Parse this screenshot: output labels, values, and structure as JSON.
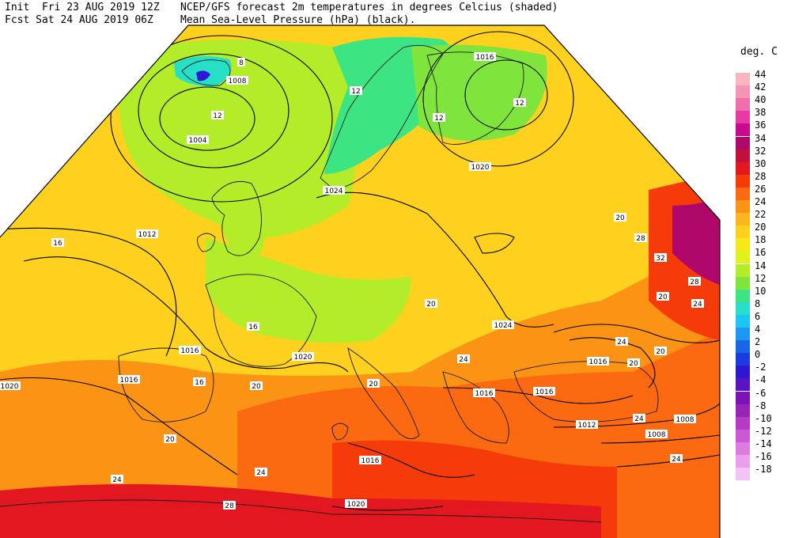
{
  "header": {
    "init_line": "Init  Fri 23 AUG 2019 12Z",
    "fcst_line": "Fcst Sat 24 AUG 2019 06Z",
    "title_line1": "NCEP/GFS forecast 2m temperatures in degrees Celcius (shaded)",
    "title_line2": "Mean Sea-Level Pressure (hPa) (black)."
  },
  "legend": {
    "title": "deg. C",
    "entries": [
      {
        "label": "44",
        "color": "#f7b7bd"
      },
      {
        "label": "42",
        "color": "#f595b5"
      },
      {
        "label": "40",
        "color": "#f06dae"
      },
      {
        "label": "38",
        "color": "#e83aa0"
      },
      {
        "label": "36",
        "color": "#c90a8c"
      },
      {
        "label": "34",
        "color": "#b0086a"
      },
      {
        "label": "32",
        "color": "#c2103e"
      },
      {
        "label": "30",
        "color": "#e3171f"
      },
      {
        "label": "28",
        "color": "#f63b0b"
      },
      {
        "label": "26",
        "color": "#fb6a10"
      },
      {
        "label": "24",
        "color": "#fb9414"
      },
      {
        "label": "22",
        "color": "#fdb61c"
      },
      {
        "label": "20",
        "color": "#fdd11d"
      },
      {
        "label": "18",
        "color": "#f6ea16"
      },
      {
        "label": "16",
        "color": "#dff21a"
      },
      {
        "label": "14",
        "color": "#b3ec28"
      },
      {
        "label": "12",
        "color": "#7fe53c"
      },
      {
        "label": "10",
        "color": "#3de482"
      },
      {
        "label": "8",
        "color": "#25e0c6"
      },
      {
        "label": "6",
        "color": "#1cc6f2"
      },
      {
        "label": "4",
        "color": "#1a98f2"
      },
      {
        "label": "2",
        "color": "#1b66e6"
      },
      {
        "label": "0",
        "color": "#1a3be0"
      },
      {
        "label": "-2",
        "color": "#2d17d4"
      },
      {
        "label": "-4",
        "color": "#5a13c4"
      },
      {
        "label": "-6",
        "color": "#7a14b6"
      },
      {
        "label": "-8",
        "color": "#9b22b7"
      },
      {
        "label": "-10",
        "color": "#b63ac4"
      },
      {
        "label": "-12",
        "color": "#c95ad2"
      },
      {
        "label": "-14",
        "color": "#dd7ce0"
      },
      {
        "label": "-16",
        "color": "#ea9eec"
      },
      {
        "label": "-18",
        "color": "#f6c2f6"
      }
    ]
  },
  "isobar_labels": [
    "1008",
    "1004",
    "1016",
    "1020",
    "1024",
    "1012",
    "1016",
    "1020",
    "1016",
    "1020",
    "1016",
    "1024",
    "1016",
    "1016",
    "1012",
    "1008",
    "1008",
    "1016",
    "1020"
  ],
  "temp_labels": [
    "8",
    "12",
    "12",
    "12",
    "12",
    "16",
    "16",
    "16",
    "20",
    "20",
    "20",
    "24",
    "24",
    "28",
    "32",
    "28",
    "20",
    "24",
    "20",
    "24",
    "20",
    "28",
    "20",
    "24",
    "24",
    "20",
    "24"
  ]
}
